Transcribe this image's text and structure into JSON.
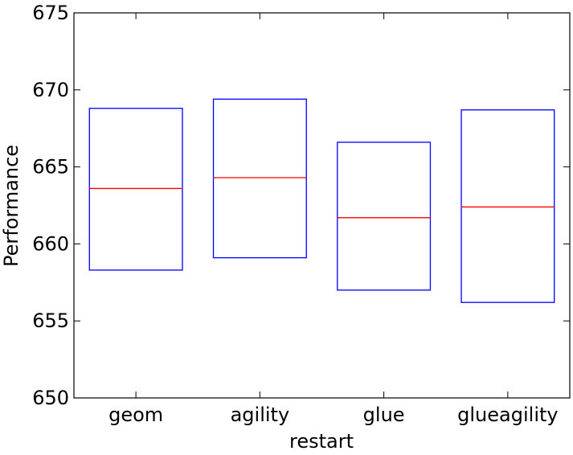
{
  "chart_data": {
    "type": "box",
    "title": "",
    "xlabel": "restart",
    "ylabel": "Performance",
    "ylim": [
      650,
      675
    ],
    "yticks": [
      650,
      655,
      660,
      665,
      670,
      675
    ],
    "categories": [
      "geom",
      "agility",
      "glue",
      "glueagility"
    ],
    "boxes": [
      {
        "category": "geom",
        "q1": 658.3,
        "median": 663.6,
        "q3": 668.8
      },
      {
        "category": "agility",
        "q1": 659.1,
        "median": 664.3,
        "q3": 669.4
      },
      {
        "category": "glue",
        "q1": 657.0,
        "median": 661.7,
        "q3": 666.6
      },
      {
        "category": "glueagility",
        "q1": 656.2,
        "median": 662.4,
        "q3": 668.7
      }
    ],
    "grid": false,
    "colors": {
      "box": "#0000ff",
      "median": "#ff0000",
      "axes": "#000000"
    }
  }
}
